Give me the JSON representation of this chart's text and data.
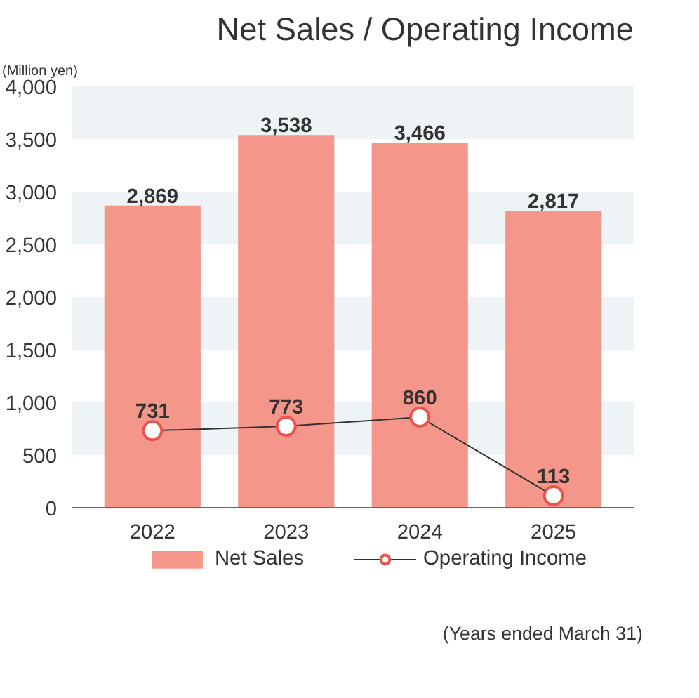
{
  "chart_data": {
    "type": "bar",
    "title": "Net Sales / Operating Income",
    "ylabel": "(Million yen)",
    "categories": [
      "2022",
      "2023",
      "2024",
      "2025"
    ],
    "series": [
      {
        "name": "Net Sales",
        "color": "#f4978a",
        "values": [
          2869,
          3538,
          3466,
          2817
        ],
        "value_labels": [
          "2,869",
          "3,538",
          "3,466",
          "2,817"
        ]
      },
      {
        "name": "Operating Income",
        "type": "line",
        "color": "#e8554e",
        "values": [
          731,
          773,
          860,
          113
        ],
        "marker": "circle",
        "value_labels": [
          "731",
          "773",
          "860",
          "113"
        ]
      }
    ],
    "ylim": [
      0,
      4000
    ],
    "yticks": [
      {
        "value": 0,
        "label": "0"
      },
      {
        "value": 500,
        "label": "500"
      },
      {
        "value": 1000,
        "label": "1,000"
      },
      {
        "value": 1500,
        "label": "1,500"
      },
      {
        "value": 2000,
        "label": "2,000"
      },
      {
        "value": 2500,
        "label": "2,500"
      },
      {
        "value": 3000,
        "label": "3,000"
      },
      {
        "value": 3500,
        "label": "3,500"
      },
      {
        "value": 4000,
        "label": "4,000"
      }
    ],
    "bands": [
      {
        "axis": "y",
        "from": 500,
        "to": 1000,
        "color": "#eef3f6"
      },
      {
        "axis": "y",
        "from": 1500,
        "to": 2000,
        "color": "#eef3f6"
      },
      {
        "axis": "y",
        "from": 2500,
        "to": 3000,
        "color": "#eef3f6"
      },
      {
        "axis": "y",
        "from": 3500,
        "to": 4000,
        "color": "#eef3f6"
      }
    ],
    "legend": "bottom",
    "annotations": [
      "(Years ended March 31)"
    ]
  }
}
